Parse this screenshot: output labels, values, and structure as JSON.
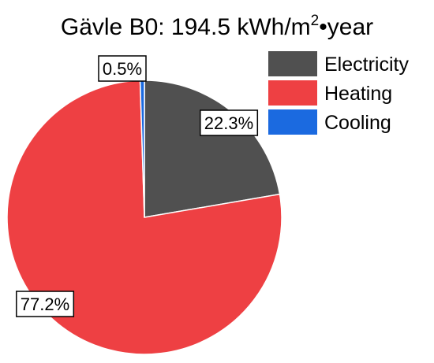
{
  "chart_data": {
    "type": "pie",
    "title": {
      "prefix": "Gävle B0: 194.5 kWh/m",
      "superscript": "2",
      "suffix": "•year"
    },
    "series": [
      {
        "name": "Electricity",
        "value": 22.3,
        "label": "22.3%",
        "color": "#505050"
      },
      {
        "name": "Heating",
        "value": 77.2,
        "label": "77.2%",
        "color": "#ee4043"
      },
      {
        "name": "Cooling",
        "value": 0.5,
        "label": "0.5%",
        "color": "#1b6ae0"
      }
    ],
    "legend_placement": "top-right"
  }
}
